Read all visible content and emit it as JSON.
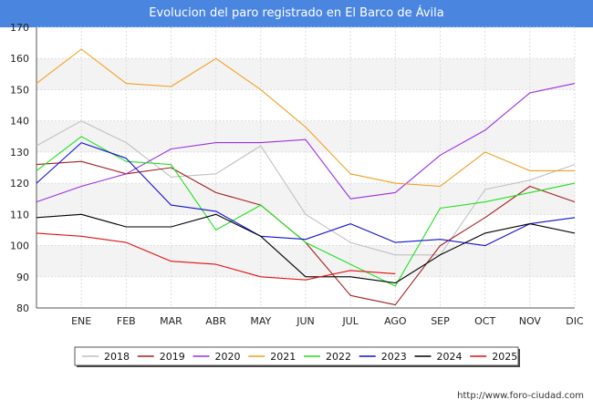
{
  "header": {
    "title": "Evolucion del paro registrado en El Barco de Ávila"
  },
  "footer": {
    "url": "http://www.foro-ciudad.com"
  },
  "chart_data": {
    "type": "line",
    "title": "Evolucion del paro registrado en El Barco de Ávila",
    "xlabel": "",
    "ylabel": "",
    "ylim": [
      80,
      170
    ],
    "yticks": [
      80,
      90,
      100,
      110,
      120,
      130,
      140,
      150,
      160,
      170
    ],
    "categories": [
      "",
      "ENE",
      "FEB",
      "MAR",
      "ABR",
      "MAY",
      "JUN",
      "JUL",
      "AGO",
      "SEP",
      "OCT",
      "NOV",
      "DIC"
    ],
    "grid": true,
    "legend_position": "bottom",
    "series": [
      {
        "name": "2018",
        "color": "#c0c0c0",
        "values": [
          132,
          140,
          133,
          122,
          123,
          132,
          110,
          101,
          97,
          97,
          118,
          121,
          126
        ]
      },
      {
        "name": "2019",
        "color": "#a02020",
        "values": [
          126,
          127,
          123,
          125,
          117,
          113,
          101,
          84,
          81,
          100,
          109,
          119,
          114
        ]
      },
      {
        "name": "2020",
        "color": "#9b30e0",
        "values": [
          114,
          119,
          123,
          131,
          133,
          133,
          134,
          115,
          117,
          129,
          137,
          149,
          152
        ]
      },
      {
        "name": "2021",
        "color": "#f0a020",
        "values": [
          152,
          163,
          152,
          151,
          160,
          150,
          138,
          123,
          120,
          119,
          130,
          124,
          124
        ]
      },
      {
        "name": "2022",
        "color": "#22e022",
        "values": [
          124,
          135,
          127,
          126,
          105,
          113,
          101,
          94,
          87,
          112,
          114,
          117,
          120
        ]
      },
      {
        "name": "2023",
        "color": "#1010d0",
        "values": [
          120,
          133,
          128,
          113,
          111,
          103,
          102,
          107,
          101,
          102,
          100,
          107,
          109
        ]
      },
      {
        "name": "2024",
        "color": "#000000",
        "values": [
          109,
          110,
          106,
          106,
          110,
          103,
          90,
          90,
          88,
          97,
          104,
          107,
          104
        ]
      },
      {
        "name": "2025",
        "color": "#e01010",
        "values": [
          104,
          103,
          101,
          95,
          94,
          90,
          89,
          92,
          91,
          null,
          null,
          null,
          null
        ]
      }
    ]
  }
}
